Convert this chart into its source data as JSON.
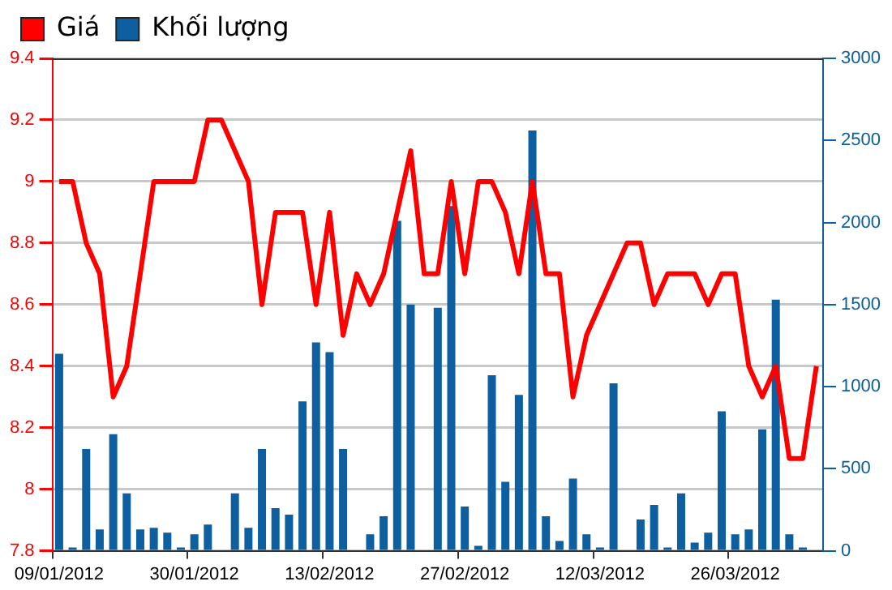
{
  "chart_data": {
    "type": "bar",
    "categories": [
      "09/01/2012",
      null,
      null,
      null,
      null,
      null,
      null,
      null,
      null,
      null,
      "30/01/2012",
      null,
      null,
      null,
      null,
      null,
      null,
      null,
      null,
      null,
      "13/02/2012",
      null,
      null,
      null,
      null,
      null,
      null,
      null,
      null,
      null,
      "27/02/2012",
      null,
      null,
      null,
      null,
      null,
      null,
      null,
      null,
      null,
      "12/03/2012",
      null,
      null,
      null,
      null,
      null,
      null,
      null,
      null,
      null,
      "26/03/2012",
      null,
      null,
      null,
      null,
      null,
      null
    ],
    "series": [
      {
        "name": "Giá",
        "type": "line",
        "color": "#ff0000",
        "values": [
          9.0,
          9.0,
          8.8,
          8.7,
          8.3,
          8.4,
          8.7,
          9.0,
          9.0,
          9.0,
          9.0,
          9.2,
          9.2,
          9.1,
          9.0,
          8.6,
          8.9,
          8.9,
          8.9,
          8.6,
          8.9,
          8.5,
          8.7,
          8.6,
          8.7,
          8.9,
          9.1,
          8.7,
          8.7,
          9.0,
          8.7,
          9.0,
          9.0,
          8.9,
          8.7,
          9.0,
          8.7,
          8.7,
          8.3,
          8.5,
          8.6,
          8.7,
          8.8,
          8.8,
          8.6,
          8.7,
          8.7,
          8.7,
          8.6,
          8.7,
          8.7,
          8.4,
          8.3,
          8.4,
          8.1,
          8.1,
          8.4
        ]
      },
      {
        "name": "Khối lượng",
        "axis": "y2",
        "color": "#0d5fa0",
        "values": [
          1200,
          20,
          620,
          130,
          710,
          350,
          130,
          140,
          110,
          20,
          100,
          160,
          0,
          350,
          140,
          620,
          260,
          220,
          910,
          1270,
          1210,
          620,
          0,
          100,
          210,
          2010,
          1500,
          0,
          1480,
          2100,
          270,
          30,
          1070,
          420,
          950,
          2560,
          210,
          60,
          440,
          100,
          20,
          1020,
          0,
          190,
          280,
          20,
          350,
          50,
          110,
          850,
          100,
          130,
          740,
          1530,
          100,
          20,
          0
        ]
      }
    ],
    "ylim": [
      7.8,
      9.4
    ],
    "yticks": [
      7.8,
      8,
      8.2,
      8.4,
      8.6,
      8.8,
      9,
      9.2,
      9.4
    ],
    "y2lim": [
      0,
      3000
    ],
    "y2ticks": [
      0,
      500,
      1000,
      1500,
      2000,
      2500,
      3000
    ],
    "grid": "y",
    "legend": "top left",
    "marker": "none"
  }
}
